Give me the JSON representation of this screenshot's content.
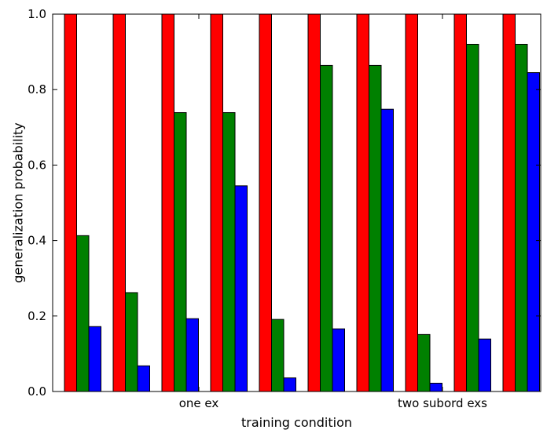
{
  "chart_data": {
    "type": "bar",
    "xlabel": "training condition",
    "ylabel": "generalization probability",
    "ylim": [
      0,
      1.0
    ],
    "yticks": [
      "0.0",
      "0.2",
      "0.4",
      "0.6",
      "0.8",
      "1.0"
    ],
    "grid": false,
    "legend": "none",
    "group_labels": [
      {
        "label": "one ex",
        "after_group": 2
      },
      {
        "label": "two subord exs",
        "after_group": 7
      }
    ],
    "series_colors": [
      "#ff0000",
      "#008000",
      "#0000ff"
    ],
    "groups": [
      [
        1.0,
        0.413,
        0.172
      ],
      [
        1.0,
        0.262,
        0.068
      ],
      [
        1.0,
        0.739,
        0.193
      ],
      [
        1.0,
        0.739,
        0.545
      ],
      [
        1.0,
        0.191,
        0.036
      ],
      [
        1.0,
        0.864,
        0.166
      ],
      [
        1.0,
        0.864,
        0.748
      ],
      [
        1.0,
        0.151,
        0.022
      ],
      [
        1.0,
        0.92,
        0.139
      ],
      [
        1.0,
        0.92,
        0.845
      ]
    ]
  }
}
